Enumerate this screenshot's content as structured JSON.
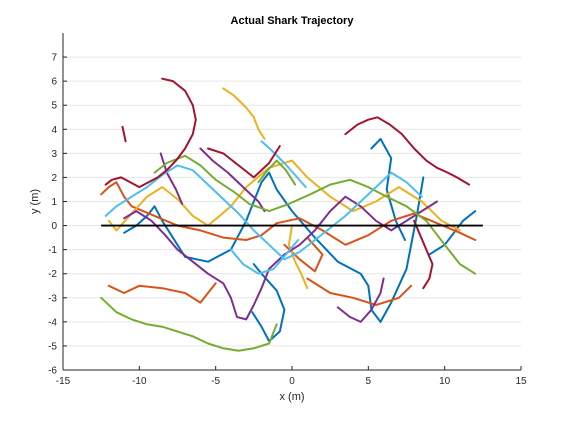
{
  "chart_data": {
    "type": "line",
    "title": "Actual Shark Trajectory",
    "xlabel": "x (m)",
    "ylabel": "y (m)",
    "xlim": [
      -15,
      15
    ],
    "ylim": [
      -6,
      8
    ],
    "xticks": [
      -15,
      -10,
      -5,
      0,
      5,
      10,
      15
    ],
    "yticks": [
      -6,
      -5,
      -4,
      -3,
      -2,
      -1,
      0,
      1,
      2,
      3,
      4,
      5,
      6,
      7
    ],
    "grid": "horizontal",
    "reference_line": {
      "x": [
        -12.5,
        12.5
      ],
      "y": [
        0,
        0
      ],
      "color": "#000000"
    },
    "series": [
      {
        "color": "#0072BD",
        "x": [
          -11.0,
          -10.2,
          -9.5,
          -9.0,
          -8.5,
          -7.0,
          -5.5,
          -4.0,
          -3.0,
          -2.5,
          -2.0,
          -1.5,
          -1.0,
          0.0,
          1.5,
          3.0,
          4.5,
          5.0,
          5.2,
          5.8,
          6.5,
          7.5,
          8.2,
          8.6
        ],
        "y": [
          -0.3,
          0.0,
          0.4,
          0.8,
          0.2,
          -1.3,
          -1.5,
          -1.0,
          0.2,
          1.0,
          1.8,
          2.2,
          1.5,
          0.6,
          -0.5,
          -1.5,
          -2.0,
          -2.5,
          -3.5,
          -4.0,
          -3.2,
          -1.8,
          0.5,
          2.0
        ]
      },
      {
        "color": "#0072BD",
        "x": [
          -2.5,
          -2.0,
          -1.0,
          -0.5,
          -0.8,
          -1.5,
          -2.0,
          -2.6
        ],
        "y": [
          -1.6,
          -2.0,
          -2.7,
          -3.5,
          -4.4,
          -4.8,
          -4.2,
          -3.6
        ]
      },
      {
        "color": "#0072BD",
        "x": [
          5.2,
          5.8,
          6.5,
          6.2,
          6.8,
          7.4
        ],
        "y": [
          3.2,
          3.6,
          2.8,
          1.5,
          0.2,
          -0.6
        ]
      },
      {
        "color": "#0072BD",
        "x": [
          9.0,
          10.0,
          11.2,
          12.0
        ],
        "y": [
          -1.2,
          -0.8,
          0.2,
          0.6
        ]
      },
      {
        "color": "#D95319",
        "x": [
          -12.5,
          -12.0,
          -11.5,
          -11.0,
          -10.5,
          -9.0,
          -7.5,
          -6.0,
          -4.5,
          -3.0,
          -2.0,
          -1.0,
          0.5,
          2.0,
          3.5,
          5.0,
          6.5,
          8.0,
          9.5,
          11.0,
          12.0
        ],
        "y": [
          1.3,
          1.6,
          1.8,
          1.2,
          0.8,
          0.4,
          0.0,
          -0.2,
          -0.5,
          -0.6,
          -0.4,
          0.1,
          0.3,
          -0.2,
          -0.8,
          -0.4,
          0.2,
          0.5,
          0.1,
          -0.3,
          -0.6
        ]
      },
      {
        "color": "#D95319",
        "x": [
          -12.0,
          -11.0,
          -10.0,
          -8.5,
          -7.0,
          -6.0,
          -5.0
        ],
        "y": [
          -2.5,
          -2.8,
          -2.5,
          -2.6,
          -2.8,
          -3.2,
          -2.4
        ]
      },
      {
        "color": "#D95319",
        "x": [
          1.0,
          2.5,
          4.0,
          5.5,
          7.0,
          7.8
        ],
        "y": [
          -2.2,
          -2.8,
          -3.0,
          -3.3,
          -3.0,
          -2.5
        ]
      },
      {
        "color": "#D95319",
        "x": [
          -0.5,
          0.5,
          1.5,
          2.0,
          1.0
        ],
        "y": [
          -0.8,
          -1.4,
          -1.9,
          -1.2,
          -0.5
        ]
      },
      {
        "color": "#EDB120",
        "x": [
          -12.0,
          -11.5,
          -10.5,
          -9.5,
          -8.5,
          -7.5,
          -6.5,
          -5.5,
          -4.0,
          -3.0,
          -1.5,
          0.0,
          1.0,
          2.5,
          4.0,
          5.5,
          7.0,
          8.5,
          9.8,
          11.0
        ],
        "y": [
          0.2,
          -0.2,
          0.5,
          1.2,
          1.6,
          1.1,
          0.4,
          0.0,
          0.8,
          1.6,
          2.4,
          2.7,
          2.0,
          1.2,
          0.6,
          1.0,
          1.6,
          1.0,
          0.2,
          -0.2
        ]
      },
      {
        "color": "#EDB120",
        "x": [
          -4.5,
          -3.8,
          -3.0,
          -2.5,
          -2.2,
          -1.8
        ],
        "y": [
          5.7,
          5.4,
          4.9,
          4.5,
          4.0,
          3.6
        ]
      },
      {
        "color": "#EDB120",
        "x": [
          0.0,
          -0.2,
          0.2,
          0.6,
          1.0
        ],
        "y": [
          0.0,
          -0.8,
          -1.5,
          -2.0,
          -2.6
        ]
      },
      {
        "color": "#7E2F8E",
        "x": [
          -11.0,
          -10.2,
          -9.2,
          -8.3,
          -7.5,
          -6.5,
          -5.5,
          -4.5,
          -4.0,
          -3.6,
          -3.0,
          -2.5,
          -2.0,
          -1.5,
          -0.5,
          0.5,
          1.5,
          2.5,
          3.5,
          4.5,
          5.5,
          6.5,
          7.5,
          8.5,
          9.5
        ],
        "y": [
          0.3,
          0.6,
          0.2,
          -0.4,
          -1.0,
          -1.5,
          -2.0,
          -2.4,
          -3.0,
          -3.8,
          -3.9,
          -3.3,
          -2.6,
          -1.8,
          -1.2,
          -0.8,
          -0.2,
          0.6,
          1.2,
          0.8,
          0.2,
          -0.2,
          0.2,
          0.6,
          1.0
        ]
      },
      {
        "color": "#7E2F8E",
        "x": [
          -6.0,
          -5.2,
          -4.2,
          -3.2,
          -2.2,
          -1.8
        ],
        "y": [
          3.2,
          2.7,
          2.2,
          1.6,
          1.0,
          0.6
        ]
      },
      {
        "color": "#7E2F8E",
        "x": [
          3.0,
          3.8,
          4.5,
          5.2,
          5.8,
          6.0
        ],
        "y": [
          -3.4,
          -3.8,
          -4.0,
          -3.5,
          -2.8,
          -2.2
        ]
      },
      {
        "color": "#7E2F8E",
        "x": [
          -8.6,
          -8.2,
          -7.6,
          -7.2
        ],
        "y": [
          3.0,
          2.2,
          1.5,
          0.9
        ]
      },
      {
        "color": "#77AC30",
        "x": [
          -12.5,
          -11.5,
          -10.5,
          -9.5,
          -8.5,
          -7.5,
          -6.5,
          -5.5,
          -4.5,
          -3.5,
          -2.5,
          -1.5,
          -1.0
        ],
        "y": [
          -3.0,
          -3.6,
          -3.9,
          -4.1,
          -4.2,
          -4.4,
          -4.6,
          -4.9,
          -5.1,
          -5.2,
          -5.1,
          -4.9,
          -4.1
        ]
      },
      {
        "color": "#77AC30",
        "x": [
          -9.0,
          -8.2,
          -7.0,
          -6.0,
          -5.0,
          -3.8,
          -2.8,
          -1.5,
          -0.2,
          1.2,
          2.5,
          3.8,
          5.0,
          6.2,
          7.5,
          8.8,
          10.0,
          11.0,
          12.0
        ],
        "y": [
          2.2,
          2.6,
          2.9,
          2.5,
          1.9,
          1.4,
          0.9,
          0.6,
          0.9,
          1.3,
          1.7,
          1.9,
          1.6,
          1.2,
          0.8,
          0.2,
          -0.8,
          -1.6,
          -2.0
        ]
      },
      {
        "color": "#77AC30",
        "x": [
          -2.2,
          -1.6,
          -1.0,
          -0.4,
          0.2
        ],
        "y": [
          1.8,
          2.3,
          2.7,
          2.3,
          1.7
        ]
      },
      {
        "color": "#4DBEEE",
        "x": [
          -12.2,
          -11.5,
          -10.5,
          -9.5,
          -8.5,
          -7.5,
          -6.5,
          -5.5,
          -4.5,
          -3.5,
          -2.5,
          -1.5,
          -0.5,
          0.5,
          1.5,
          2.5,
          3.5,
          4.5,
          5.5,
          6.5,
          7.5,
          8.5
        ],
        "y": [
          0.4,
          0.8,
          1.2,
          1.6,
          2.1,
          2.5,
          2.3,
          1.7,
          1.1,
          0.5,
          -0.2,
          -0.8,
          -1.4,
          -1.1,
          -0.6,
          -0.1,
          0.4,
          1.0,
          1.6,
          2.2,
          1.8,
          1.2
        ]
      },
      {
        "color": "#4DBEEE",
        "x": [
          -2.0,
          -1.3,
          -0.5,
          0.2,
          0.9
        ],
        "y": [
          3.5,
          3.1,
          2.6,
          2.1,
          1.6
        ]
      },
      {
        "color": "#4DBEEE",
        "x": [
          -4.0,
          -3.2,
          -2.2,
          -1.2,
          -0.4,
          0.4
        ],
        "y": [
          -1.0,
          -1.6,
          -2.0,
          -1.8,
          -1.2,
          -0.6
        ]
      },
      {
        "color": "#A2142F",
        "x": [
          -8.5,
          -7.8,
          -7.0,
          -6.5,
          -6.3,
          -6.5,
          -7.0,
          -7.6,
          -8.2,
          -8.8,
          -9.4,
          -10.0,
          -10.6,
          -11.2,
          -11.8,
          -12.2
        ],
        "y": [
          6.1,
          6.0,
          5.6,
          5.0,
          4.4,
          3.8,
          3.2,
          2.7,
          2.3,
          2.0,
          1.8,
          1.6,
          1.8,
          2.0,
          1.9,
          1.7
        ]
      },
      {
        "color": "#A2142F",
        "x": [
          3.5,
          4.3,
          5.0,
          5.6,
          6.4,
          7.2,
          8.0,
          8.8,
          9.5,
          10.2,
          10.8,
          11.6
        ],
        "y": [
          3.8,
          4.2,
          4.4,
          4.5,
          4.2,
          3.8,
          3.2,
          2.7,
          2.4,
          2.2,
          2.0,
          1.7
        ]
      },
      {
        "color": "#A2142F",
        "x": [
          -5.5,
          -4.5,
          -3.5,
          -2.5,
          -1.5,
          -0.8
        ],
        "y": [
          3.2,
          3.0,
          2.5,
          2.0,
          2.6,
          3.3
        ]
      },
      {
        "color": "#A2142F",
        "x": [
          8.0,
          8.4,
          8.8,
          9.2,
          9.0,
          8.6
        ],
        "y": [
          0.2,
          -0.4,
          -1.0,
          -1.6,
          -2.2,
          -2.6
        ]
      },
      {
        "color": "#A2142F",
        "x": [
          -11.1,
          -11.0,
          -10.9
        ],
        "y": [
          4.1,
          3.8,
          3.5
        ]
      }
    ]
  }
}
